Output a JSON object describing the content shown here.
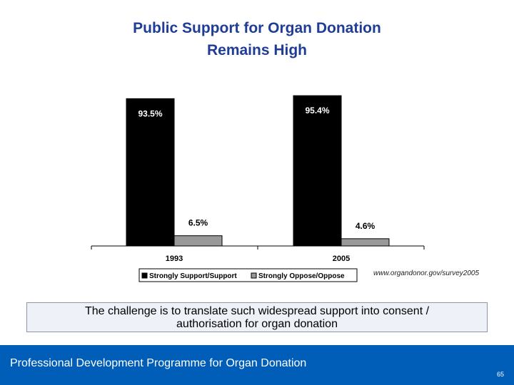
{
  "slide": {
    "title_line1": "Public Support for Organ Donation",
    "title_line2": "Remains High",
    "source": "www.organdonor.gov/survey2005",
    "callout_line1": "The challenge is to translate such widespread support into consent /",
    "callout_line2": "authorisation for organ donation",
    "footer_title": "Professional Development Programme for Organ Donation",
    "page_number": "65"
  },
  "chart_data": {
    "type": "bar",
    "categories": [
      "1993",
      "2005"
    ],
    "series": [
      {
        "name": "Strongly Support/Support",
        "values": [
          93.5,
          95.4
        ],
        "labels": [
          "93.5%",
          "95.4%"
        ],
        "color": "#000000"
      },
      {
        "name": "Strongly Oppose/Oppose",
        "values": [
          6.5,
          4.6
        ],
        "labels": [
          "6.5%",
          "4.6%"
        ],
        "color": "#999999"
      }
    ],
    "ylim": [
      0,
      100
    ],
    "legend_position": "bottom",
    "grid": false
  },
  "colors": {
    "title": "#1f3c96",
    "footer_bg": "#005eb8",
    "callout_bg": "#eef1f8"
  }
}
